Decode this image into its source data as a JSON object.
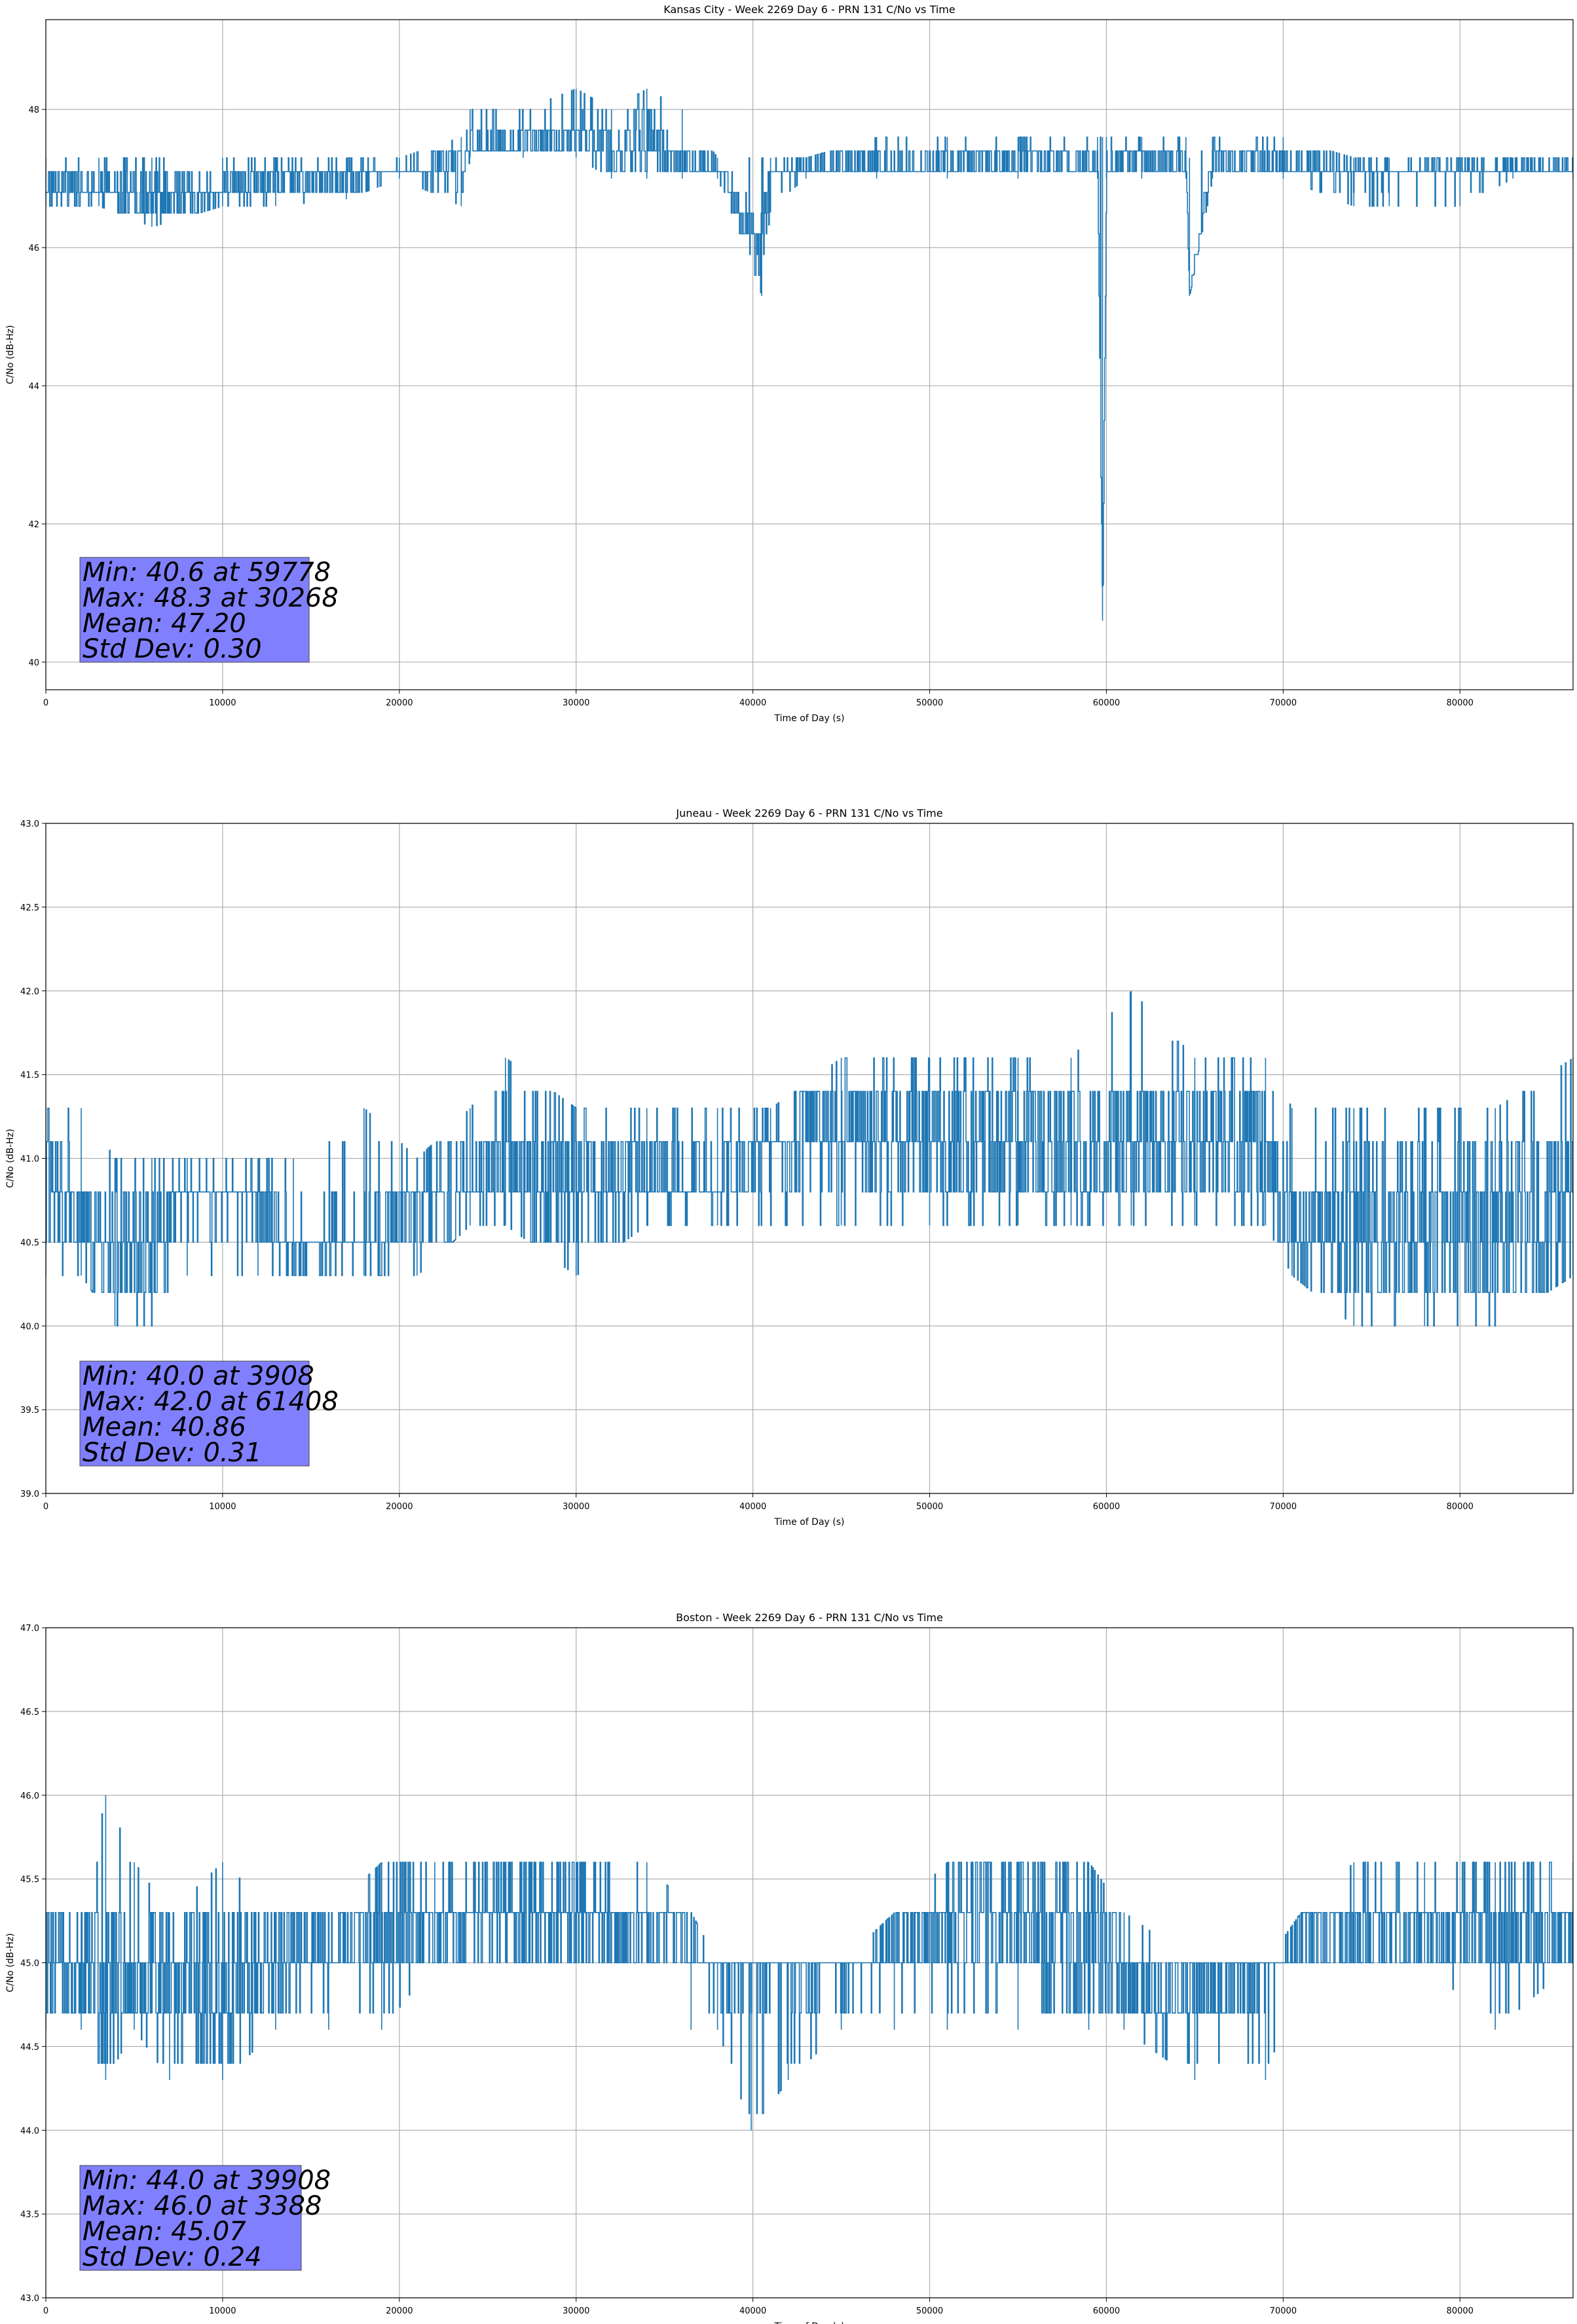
{
  "colors": {
    "series": "#1f77b4",
    "grid": "#b0b0b0",
    "stats_box": "#8080ff"
  },
  "chart_data": [
    {
      "type": "line",
      "title": "Kansas City - Week 2269 Day 6 - PRN 131 C/No vs Time",
      "xlabel": "Time of Day (s)",
      "ylabel": "C/No (dB-Hz)",
      "xlim": [
        0,
        86400
      ],
      "ylim": [
        39.6,
        49.3
      ],
      "xticks": [
        0,
        10000,
        20000,
        30000,
        40000,
        50000,
        60000,
        70000,
        80000
      ],
      "yticks": [
        40,
        42,
        44,
        46,
        48
      ],
      "grid": true,
      "legend": "none",
      "stats": [
        "Min: 40.6 at 59778",
        "Max: 48.3 at 30268",
        "Mean: 47.20",
        "Std Dev: 0.30"
      ],
      "series": [
        {
          "x": [
            0,
            3000,
            6000,
            10000,
            13000,
            17000,
            20000,
            23500,
            24000,
            27000,
            30000,
            32000,
            34000,
            36000,
            38000,
            40500,
            41000,
            43000,
            47000,
            51000,
            55000,
            59500,
            59778,
            60000,
            62000,
            64500,
            64700,
            66000,
            70000,
            74000,
            76000,
            80000,
            83000,
            86400
          ],
          "y": [
            47.0,
            46.8,
            46.8,
            46.8,
            47.0,
            47.0,
            47.1,
            47.2,
            47.5,
            47.5,
            47.6,
            47.4,
            47.6,
            47.2,
            47.2,
            45.9,
            47.1,
            47.2,
            47.2,
            47.2,
            47.3,
            47.2,
            40.6,
            47.3,
            47.3,
            47.2,
            45.3,
            47.3,
            47.2,
            47.1,
            47.1,
            47.2,
            47.2,
            47.2
          ],
          "low": [
            46.6,
            46.6,
            46.3,
            46.6,
            46.6,
            46.7,
            47.0,
            46.6,
            47.3,
            47.3,
            47.3,
            47.0,
            47.0,
            47.0,
            47.0,
            45.3,
            46.6,
            47.0,
            47.0,
            47.0,
            47.0,
            47.0,
            40.6,
            47.0,
            47.0,
            47.0,
            45.3,
            47.0,
            47.0,
            46.6,
            46.6,
            46.6,
            47.0,
            47.0
          ],
          "high": [
            47.3,
            47.3,
            47.3,
            47.3,
            47.3,
            47.3,
            47.3,
            47.6,
            48.0,
            48.0,
            48.3,
            48.0,
            48.3,
            48.0,
            47.3,
            47.3,
            47.3,
            47.3,
            47.6,
            47.6,
            47.6,
            47.6,
            47.6,
            47.6,
            47.6,
            47.6,
            47.3,
            47.6,
            47.6,
            47.3,
            47.3,
            47.3,
            47.3,
            47.3
          ]
        }
      ]
    },
    {
      "type": "line",
      "title": "Juneau - Week 2269 Day 6 - PRN 131 C/No vs Time",
      "xlabel": "Time of Day (s)",
      "ylabel": "C/No (dB-Hz)",
      "xlim": [
        0,
        86400
      ],
      "ylim": [
        39.0,
        43.0
      ],
      "xticks": [
        0,
        10000,
        20000,
        30000,
        40000,
        50000,
        60000,
        70000,
        80000
      ],
      "yticks": [
        39.0,
        39.5,
        40.0,
        40.5,
        41.0,
        41.5,
        42.0,
        42.5,
        43.0
      ],
      "grid": true,
      "legend": "none",
      "stats": [
        "Min: 40.0 at 3908",
        "Max: 42.0 at 61408",
        "Mean: 40.86",
        "Std Dev: 0.31"
      ],
      "series": [
        {
          "x": [
            0,
            2000,
            3908,
            6000,
            8000,
            12000,
            14000,
            18000,
            21000,
            24000,
            26000,
            30000,
            34000,
            38000,
            41000,
            45000,
            50000,
            55000,
            58000,
            61408,
            65000,
            69000,
            70500,
            74000,
            78000,
            82000,
            86400
          ],
          "y": [
            40.8,
            40.6,
            40.4,
            40.5,
            40.8,
            40.8,
            40.5,
            40.5,
            40.7,
            40.8,
            41.0,
            40.9,
            40.9,
            40.8,
            41.1,
            41.2,
            41.1,
            41.1,
            41.1,
            41.1,
            41.1,
            41.1,
            40.6,
            40.6,
            40.6,
            40.6,
            40.8
          ],
          "low": [
            40.3,
            40.3,
            40.0,
            40.0,
            40.3,
            40.3,
            40.3,
            40.3,
            40.3,
            40.6,
            40.6,
            40.3,
            40.6,
            40.6,
            40.6,
            40.6,
            40.6,
            40.6,
            40.6,
            40.6,
            40.6,
            40.6,
            40.3,
            40.0,
            40.0,
            40.0,
            40.3
          ],
          "high": [
            41.3,
            41.3,
            41.0,
            41.0,
            41.0,
            41.0,
            41.0,
            41.3,
            41.0,
            41.3,
            41.6,
            41.3,
            41.3,
            41.3,
            41.3,
            41.6,
            41.6,
            41.6,
            41.6,
            42.0,
            41.6,
            41.6,
            41.3,
            41.3,
            41.3,
            41.3,
            41.6
          ]
        }
      ]
    },
    {
      "type": "line",
      "title": "Boston - Week 2269 Day 6 - PRN 131 C/No vs Time",
      "xlabel": "Time of Day (s)",
      "ylabel": "C/No (dB-Hz)",
      "xlim": [
        0,
        86400
      ],
      "ylim": [
        43.0,
        47.0
      ],
      "xticks": [
        0,
        10000,
        20000,
        30000,
        40000,
        50000,
        60000,
        70000,
        80000
      ],
      "yticks": [
        43.0,
        43.5,
        44.0,
        44.5,
        45.0,
        45.5,
        46.0,
        46.5,
        47.0
      ],
      "grid": true,
      "legend": "none",
      "stats": [
        "Min: 44.0 at 39908",
        "Max: 46.0 at 3388",
        "Mean: 45.07",
        "Std Dev: 0.24"
      ],
      "series": [
        {
          "x": [
            0,
            2000,
            3388,
            5000,
            7000,
            10000,
            13000,
            16000,
            19000,
            22000,
            26000,
            30000,
            34000,
            36500,
            38000,
            39908,
            42000,
            45000,
            48000,
            51000,
            55000,
            59000,
            61000,
            65000,
            69000,
            71000,
            74000,
            78000,
            82000,
            86400
          ],
          "y": [
            45.0,
            45.0,
            45.0,
            44.9,
            44.9,
            44.9,
            45.0,
            45.1,
            45.2,
            45.2,
            45.3,
            45.3,
            45.2,
            45.1,
            44.9,
            44.9,
            44.9,
            44.9,
            45.1,
            45.2,
            45.2,
            45.1,
            44.9,
            44.8,
            44.9,
            45.2,
            45.2,
            45.2,
            45.2,
            45.2
          ],
          "low": [
            44.6,
            44.6,
            44.3,
            44.6,
            44.3,
            44.3,
            44.6,
            44.6,
            44.6,
            45.0,
            45.0,
            45.0,
            45.0,
            44.6,
            44.6,
            44.0,
            44.3,
            44.6,
            44.6,
            44.6,
            44.6,
            44.6,
            44.6,
            44.3,
            44.3,
            45.0,
            45.0,
            45.0,
            44.6,
            45.0
          ],
          "high": [
            45.3,
            45.3,
            46.0,
            45.6,
            45.3,
            45.6,
            45.3,
            45.3,
            45.6,
            45.6,
            45.6,
            45.6,
            45.6,
            45.3,
            45.0,
            45.0,
            45.0,
            45.0,
            45.3,
            45.6,
            45.6,
            45.6,
            45.3,
            45.0,
            45.0,
            45.3,
            45.6,
            45.6,
            45.6,
            45.6
          ]
        }
      ]
    }
  ]
}
